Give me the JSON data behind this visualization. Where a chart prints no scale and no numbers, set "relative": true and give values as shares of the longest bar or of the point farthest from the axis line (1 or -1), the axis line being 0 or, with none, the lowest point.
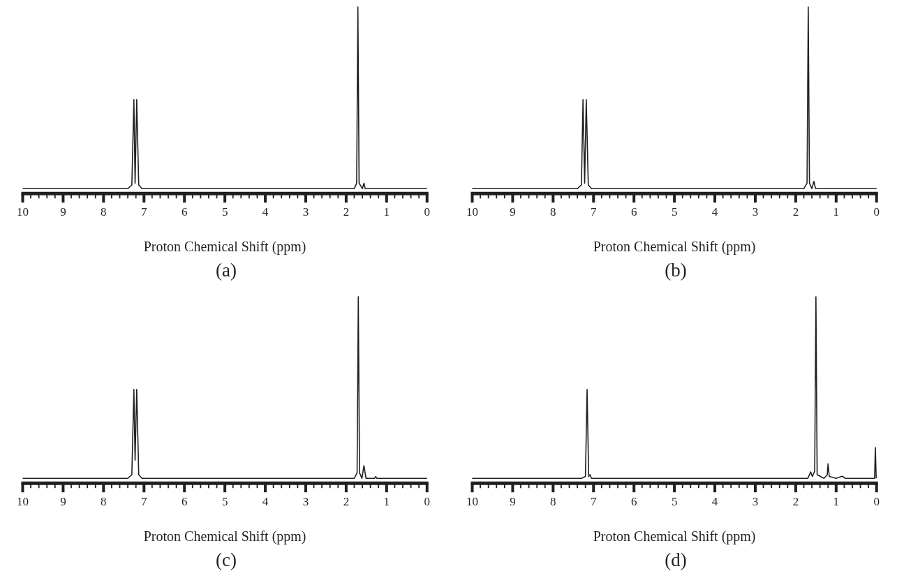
{
  "chart_data": [
    {
      "type": "line",
      "title": "(a)",
      "xlabel": "Proton Chemical Shift (ppm)",
      "relative": true,
      "color": "#231f20",
      "marker": "none",
      "xlim": [
        10,
        0
      ],
      "xticks": [
        10,
        9,
        8,
        7,
        6,
        5,
        4,
        3,
        2,
        1,
        0
      ],
      "x": [
        10,
        7.4,
        7.3,
        7.25,
        7.22,
        7.18,
        7.13,
        7.05,
        1.8,
        1.74,
        1.71,
        1.68,
        1.6,
        1.56,
        1.53,
        0
      ],
      "values": [
        0,
        0,
        0.02,
        0.49,
        0.03,
        0.49,
        0.02,
        0,
        0,
        0.03,
        1,
        0.03,
        0,
        0.03,
        0,
        0
      ]
    },
    {
      "type": "line",
      "title": "(b)",
      "xlabel": "Proton Chemical Shift (ppm)",
      "relative": true,
      "color": "#231f20",
      "marker": "none",
      "xlim": [
        10,
        0
      ],
      "xticks": [
        10,
        9,
        8,
        7,
        6,
        5,
        4,
        3,
        2,
        1,
        0
      ],
      "x": [
        10,
        7.4,
        7.3,
        7.26,
        7.22,
        7.18,
        7.13,
        7.05,
        1.8,
        1.72,
        1.69,
        1.66,
        1.6,
        1.55,
        1.51,
        0
      ],
      "values": [
        0,
        0,
        0.02,
        0.49,
        0.03,
        0.49,
        0.02,
        0,
        0,
        0.03,
        1,
        0.03,
        0,
        0.04,
        0,
        0
      ]
    },
    {
      "type": "line",
      "title": "(c)",
      "xlabel": "Proton Chemical Shift (ppm)",
      "relative": true,
      "color": "#231f20",
      "marker": "none",
      "xlim": [
        10,
        0
      ],
      "xticks": [
        10,
        9,
        8,
        7,
        6,
        5,
        4,
        3,
        2,
        1,
        0
      ],
      "x": [
        10,
        7.4,
        7.3,
        7.25,
        7.22,
        7.18,
        7.13,
        7.05,
        1.8,
        1.73,
        1.7,
        1.67,
        1.61,
        1.56,
        1.51,
        1.3,
        1.27,
        1.24,
        0
      ],
      "values": [
        0,
        0,
        0.02,
        0.49,
        0.1,
        0.49,
        0.02,
        0,
        0,
        0.03,
        1,
        0.03,
        0,
        0.07,
        0,
        0,
        0.01,
        0,
        0
      ]
    },
    {
      "type": "line",
      "title": "(d)",
      "xlabel": "Proton Chemical Shift (ppm)",
      "relative": true,
      "color": "#231f20",
      "marker": "none",
      "xlim": [
        10,
        0
      ],
      "xticks": [
        10,
        9,
        8,
        7,
        6,
        5,
        4,
        3,
        2,
        1,
        0
      ],
      "x": [
        10,
        7.3,
        7.2,
        7.16,
        7.12,
        7.09,
        7.05,
        1.7,
        1.63,
        1.59,
        1.53,
        1.5,
        1.47,
        1.3,
        1.22,
        1.2,
        1.17,
        1.0,
        0.87,
        0.83,
        0.78,
        0.05,
        0.03,
        0.01,
        0
      ],
      "values": [
        0,
        0,
        0.01,
        0.49,
        0.01,
        0.02,
        0,
        0,
        0.035,
        0.01,
        0.04,
        1,
        0.02,
        0,
        0.02,
        0.08,
        0.01,
        0,
        0.01,
        0.01,
        0,
        0,
        0.17,
        0,
        0
      ]
    }
  ]
}
